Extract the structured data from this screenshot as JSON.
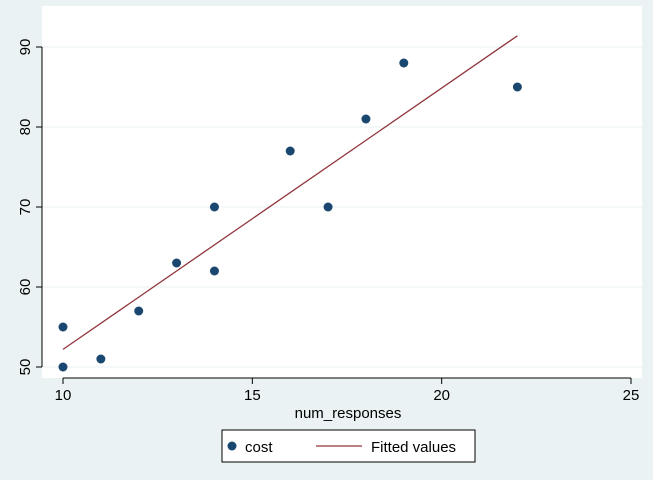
{
  "chart_data": {
    "type": "scatter",
    "title": "",
    "xlabel": "num_responses",
    "ylabel": "",
    "xlim": [
      10,
      25
    ],
    "ylim": [
      50,
      93
    ],
    "x_ticks": [
      10,
      15,
      20,
      25
    ],
    "y_ticks": [
      50,
      60,
      70,
      80,
      90
    ],
    "grid": true,
    "legend_position": "bottom",
    "series": [
      {
        "name": "cost",
        "kind": "scatter",
        "color": "#1a476f",
        "points": [
          {
            "x": 10,
            "y": 55
          },
          {
            "x": 10,
            "y": 50
          },
          {
            "x": 11,
            "y": 51
          },
          {
            "x": 12,
            "y": 57
          },
          {
            "x": 13,
            "y": 63
          },
          {
            "x": 14,
            "y": 70
          },
          {
            "x": 14,
            "y": 62
          },
          {
            "x": 16,
            "y": 77
          },
          {
            "x": 17,
            "y": 70
          },
          {
            "x": 18,
            "y": 81
          },
          {
            "x": 19,
            "y": 88
          },
          {
            "x": 22,
            "y": 85
          }
        ]
      },
      {
        "name": "Fitted values",
        "kind": "line",
        "color": "#90353b",
        "points": [
          {
            "x": 10,
            "y": 52.2
          },
          {
            "x": 22,
            "y": 91.4
          }
        ]
      }
    ]
  }
}
